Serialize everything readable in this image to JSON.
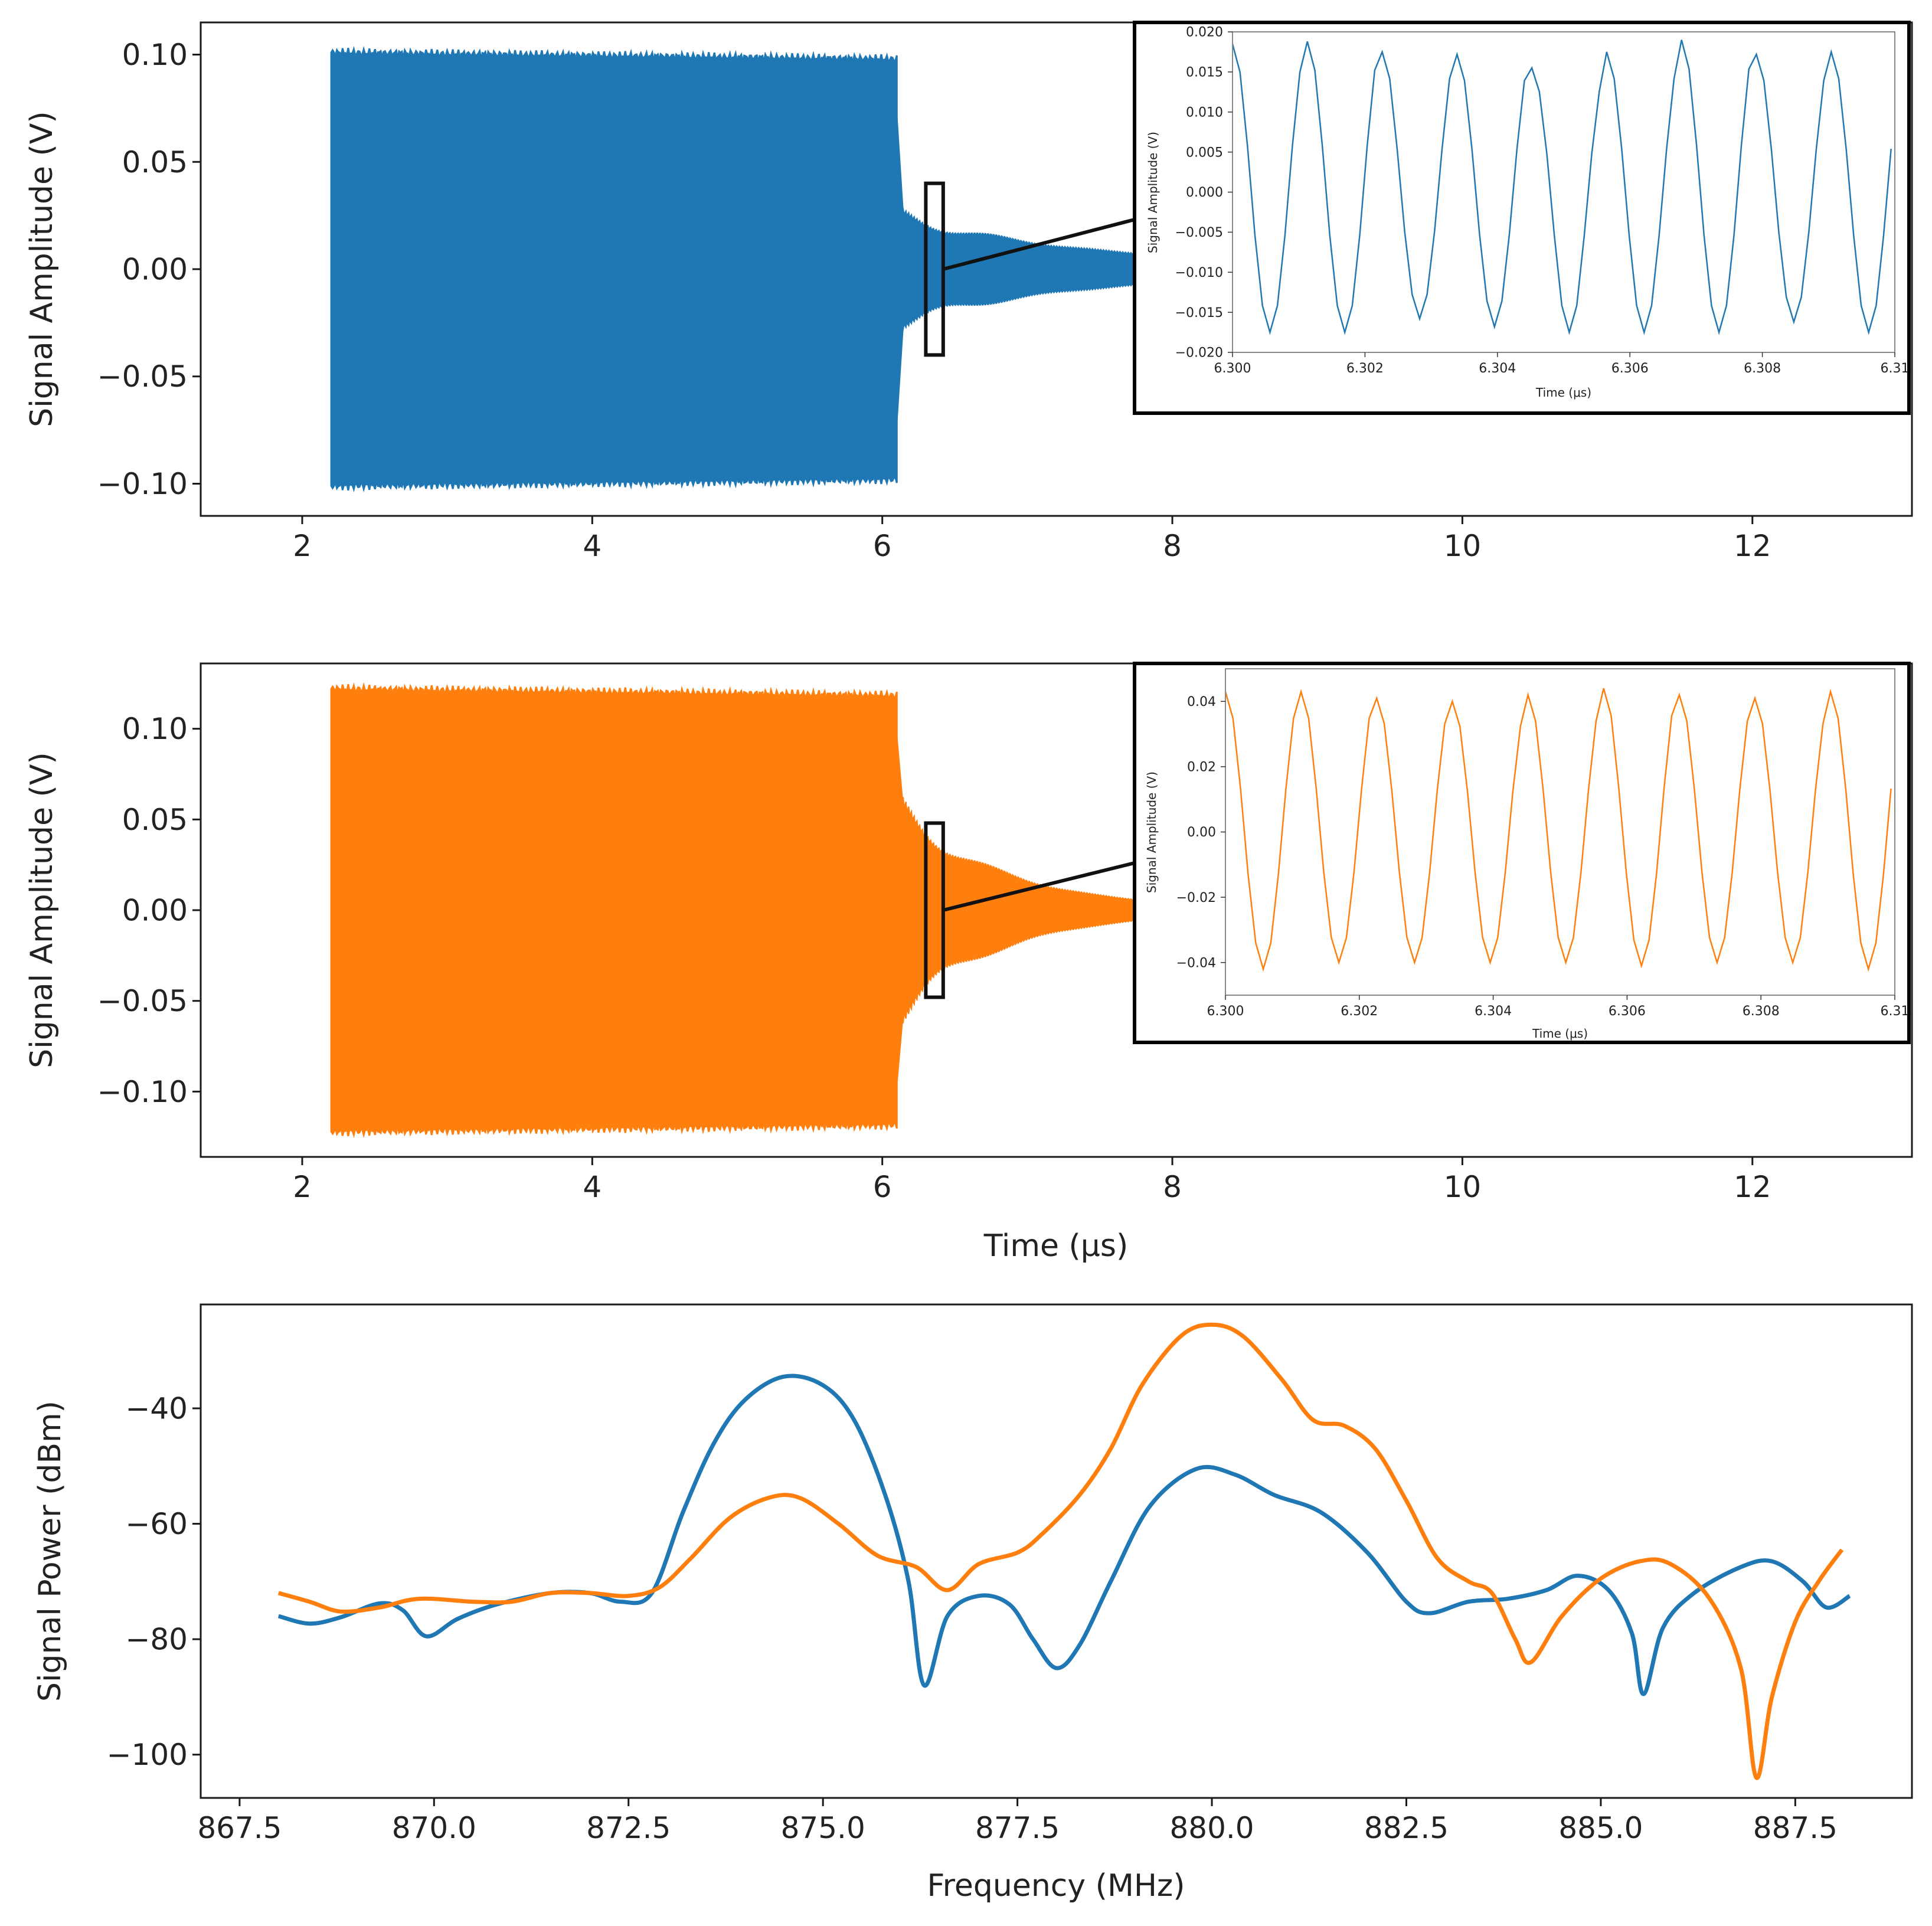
{
  "chart_data": [
    {
      "type": "line",
      "panel": "top",
      "ylabel": "Signal Amplitude (V)",
      "xlabel": "",
      "xlim": [
        1.3,
        13.1
      ],
      "ylim": [
        -0.115,
        0.115
      ],
      "xticks": [
        2,
        4,
        6,
        8,
        10,
        12
      ],
      "xtick_labels": [
        "2",
        "4",
        "6",
        "8",
        "10",
        "12"
      ],
      "yticks": [
        -0.1,
        -0.05,
        0.0,
        0.05,
        0.1
      ],
      "ytick_labels": [
        "−0.10",
        "−0.05",
        "0.00",
        "0.05",
        "0.10"
      ],
      "series": [
        {
          "color": "#1f77b4",
          "drive_start": 2.2,
          "drive_end": 6.1,
          "drive_amplitude": 0.101,
          "ringdown_start_amplitude": 0.024,
          "ringdown_end_amplitude": 0.006,
          "ringdown_end": 8.0
        }
      ],
      "zoom_box": {
        "x": [
          6.3,
          6.42
        ],
        "y": [
          -0.04,
          0.04
        ]
      },
      "inset": {
        "ylabel": "Signal Amplitude (V)",
        "xlabel": "Time (μs)",
        "xlim": [
          6.3,
          6.31
        ],
        "ylim": [
          -0.02,
          0.02
        ],
        "xticks": [
          6.3,
          6.302,
          6.304,
          6.306,
          6.308,
          6.31
        ],
        "xtick_labels": [
          "6.300",
          "6.302",
          "6.304",
          "6.306",
          "6.308",
          "6.31"
        ],
        "yticks": [
          -0.02,
          -0.015,
          -0.01,
          -0.005,
          0.0,
          0.005,
          0.01,
          0.015,
          0.02
        ],
        "ytick_labels": [
          "−0.020",
          "−0.015",
          "−0.010",
          "−0.005",
          "0.000",
          "0.005",
          "0.010",
          "0.015",
          "0.020"
        ],
        "period": 0.00113,
        "phase": 0.0,
        "peaks": [
          0.0185,
          0.0188,
          0.0175,
          0.0172,
          0.0155,
          0.0175,
          0.019,
          0.0172,
          0.0175
        ],
        "troughs": [
          -0.0175,
          -0.0175,
          -0.0158,
          -0.0168,
          -0.0175,
          -0.0175,
          -0.0175,
          -0.0162,
          -0.0175
        ]
      }
    },
    {
      "type": "line",
      "panel": "middle",
      "ylabel": "Signal Amplitude (V)",
      "xlabel": "Time (μs)",
      "xlim": [
        1.3,
        13.1
      ],
      "ylim": [
        -0.136,
        0.136
      ],
      "xticks": [
        2,
        4,
        6,
        8,
        10,
        12
      ],
      "xtick_labels": [
        "2",
        "4",
        "6",
        "8",
        "10",
        "12"
      ],
      "yticks": [
        -0.1,
        -0.05,
        0.0,
        0.05,
        0.1
      ],
      "ytick_labels": [
        "−0.10",
        "−0.05",
        "0.00",
        "0.05",
        "0.10"
      ],
      "series": [
        {
          "color": "#ff7f0e",
          "drive_start": 2.2,
          "drive_end": 6.1,
          "drive_amplitude": 0.122,
          "ringdown_start_amplitude": 0.055,
          "ringdown_end_amplitude": 0.004,
          "ringdown_end": 8.0
        }
      ],
      "zoom_box": {
        "x": [
          6.3,
          6.42
        ],
        "y": [
          -0.048,
          0.048
        ]
      },
      "inset": {
        "ylabel": "Signal Amplitude (V)",
        "xlabel": "Time (μs)",
        "xlim": [
          6.3,
          6.31
        ],
        "ylim": [
          -0.05,
          0.05
        ],
        "xticks": [
          6.3,
          6.302,
          6.304,
          6.306,
          6.308,
          6.31
        ],
        "xtick_labels": [
          "6.300",
          "6.302",
          "6.304",
          "6.306",
          "6.308",
          "6.31"
        ],
        "yticks": [
          -0.04,
          -0.02,
          0.0,
          0.02,
          0.04
        ],
        "ytick_labels": [
          "−0.04",
          "−0.02",
          "0.00",
          "0.02",
          "0.04"
        ],
        "period": 0.00113,
        "phase": 0.0,
        "peaks": [
          0.043,
          0.043,
          0.041,
          0.04,
          0.042,
          0.044,
          0.042,
          0.041,
          0.043
        ],
        "troughs": [
          -0.042,
          -0.04,
          -0.04,
          -0.04,
          -0.04,
          -0.041,
          -0.04,
          -0.04,
          -0.042
        ]
      }
    },
    {
      "type": "line",
      "panel": "bottom",
      "xlabel": "Frequency (MHz)",
      "ylabel": "Signal Power (dBm)",
      "xlim": [
        867.0,
        889.0
      ],
      "ylim": [
        -107.5,
        -22
      ],
      "xticks": [
        867.5,
        870.0,
        872.5,
        875.0,
        877.5,
        880.0,
        882.5,
        885.0,
        887.5
      ],
      "xtick_labels": [
        "867.5",
        "870.0",
        "872.5",
        "875.0",
        "877.5",
        "880.0",
        "882.5",
        "885.0",
        "887.5"
      ],
      "yticks": [
        -100,
        -80,
        -60,
        -40
      ],
      "ytick_labels": [
        "−100",
        "−80",
        "−60",
        "−40"
      ],
      "series": [
        {
          "color": "#1f77b4",
          "points": [
            [
              868.0,
              -76
            ],
            [
              868.4,
              -77.3
            ],
            [
              868.8,
              -76.2
            ],
            [
              869.3,
              -73.8
            ],
            [
              869.6,
              -75
            ],
            [
              869.9,
              -79.5
            ],
            [
              870.3,
              -76.5
            ],
            [
              870.8,
              -74
            ],
            [
              871.5,
              -72
            ],
            [
              872.0,
              -72
            ],
            [
              872.4,
              -73.5
            ],
            [
              872.8,
              -72
            ],
            [
              873.2,
              -58
            ],
            [
              873.6,
              -46
            ],
            [
              874.0,
              -38.5
            ],
            [
              874.5,
              -34.5
            ],
            [
              875.0,
              -36
            ],
            [
              875.4,
              -42
            ],
            [
              875.8,
              -55
            ],
            [
              876.1,
              -70
            ],
            [
              876.3,
              -88
            ],
            [
              876.6,
              -76
            ],
            [
              877.0,
              -72.5
            ],
            [
              877.4,
              -74
            ],
            [
              877.7,
              -80
            ],
            [
              878.0,
              -85
            ],
            [
              878.3,
              -81
            ],
            [
              878.7,
              -70
            ],
            [
              879.2,
              -57
            ],
            [
              879.8,
              -50.5
            ],
            [
              880.3,
              -51.5
            ],
            [
              880.8,
              -55
            ],
            [
              881.4,
              -58
            ],
            [
              882.0,
              -65
            ],
            [
              882.5,
              -73.5
            ],
            [
              882.8,
              -75.5
            ],
            [
              883.3,
              -73.5
            ],
            [
              883.8,
              -73
            ],
            [
              884.3,
              -71.5
            ],
            [
              884.7,
              -69
            ],
            [
              885.1,
              -71.5
            ],
            [
              885.4,
              -79
            ],
            [
              885.55,
              -89.5
            ],
            [
              885.8,
              -78
            ],
            [
              886.2,
              -72
            ],
            [
              886.8,
              -67.5
            ],
            [
              887.2,
              -66.5
            ],
            [
              887.6,
              -70
            ],
            [
              887.9,
              -74.5
            ],
            [
              888.2,
              -72.5
            ]
          ]
        },
        {
          "color": "#ff7f0e",
          "points": [
            [
              868.0,
              -72
            ],
            [
              868.4,
              -73.5
            ],
            [
              868.8,
              -75.2
            ],
            [
              869.3,
              -74.5
            ],
            [
              869.8,
              -73
            ],
            [
              870.5,
              -73.5
            ],
            [
              871.0,
              -73.5
            ],
            [
              871.5,
              -72
            ],
            [
              872.0,
              -72
            ],
            [
              872.5,
              -72.5
            ],
            [
              872.9,
              -71
            ],
            [
              873.3,
              -66
            ],
            [
              873.8,
              -59
            ],
            [
              874.3,
              -55.5
            ],
            [
              874.7,
              -55.5
            ],
            [
              875.2,
              -60
            ],
            [
              875.7,
              -65.5
            ],
            [
              876.2,
              -67.5
            ],
            [
              876.6,
              -71.5
            ],
            [
              877.0,
              -67
            ],
            [
              877.5,
              -65
            ],
            [
              877.8,
              -62
            ],
            [
              878.3,
              -55
            ],
            [
              878.7,
              -47
            ],
            [
              879.1,
              -36
            ],
            [
              879.6,
              -27.5
            ],
            [
              880.0,
              -25.5
            ],
            [
              880.4,
              -27.5
            ],
            [
              880.9,
              -35
            ],
            [
              881.3,
              -42
            ],
            [
              881.7,
              -43
            ],
            [
              882.1,
              -47
            ],
            [
              882.5,
              -56
            ],
            [
              882.9,
              -66
            ],
            [
              883.3,
              -70
            ],
            [
              883.6,
              -72
            ],
            [
              883.9,
              -80
            ],
            [
              884.1,
              -84
            ],
            [
              884.5,
              -76
            ],
            [
              885.0,
              -69.5
            ],
            [
              885.5,
              -66.5
            ],
            [
              885.9,
              -67
            ],
            [
              886.4,
              -73
            ],
            [
              886.8,
              -85
            ],
            [
              887.0,
              -104
            ],
            [
              887.2,
              -90
            ],
            [
              887.5,
              -77
            ],
            [
              887.8,
              -70
            ],
            [
              888.1,
              -64.5
            ]
          ]
        }
      ]
    }
  ]
}
